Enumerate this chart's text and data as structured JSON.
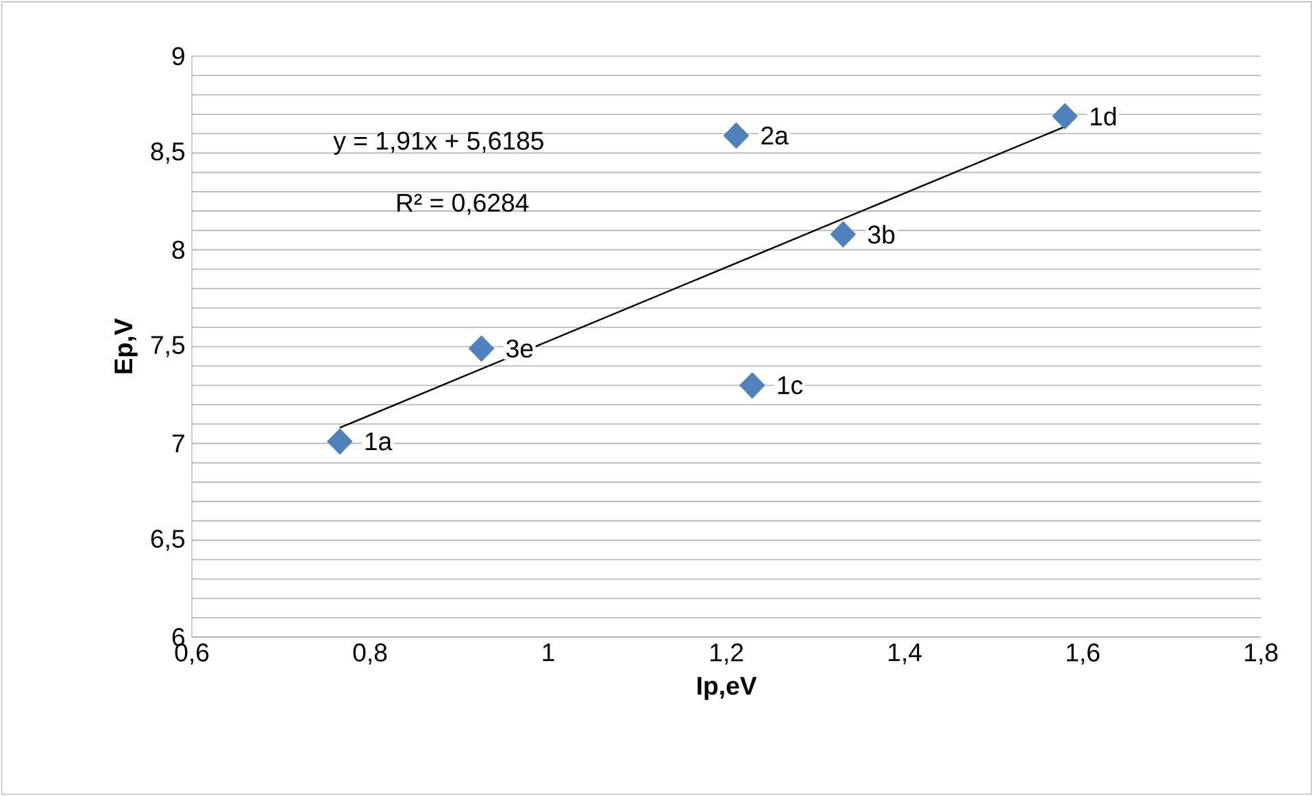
{
  "chart_data": {
    "type": "scatter",
    "xlabel": "Ip,eV",
    "ylabel": "Ep,V",
    "xlim": [
      0.6,
      1.8
    ],
    "ylim": [
      6,
      9
    ],
    "xticks": [
      {
        "value": 0.6,
        "label": "0,6"
      },
      {
        "value": 0.8,
        "label": "0,8"
      },
      1,
      {
        "value": 1.2,
        "label": "1,2"
      },
      {
        "value": 1.4,
        "label": "1,4"
      },
      {
        "value": 1.6,
        "label": "1,6"
      },
      {
        "value": 1.8,
        "label": "1,8"
      }
    ],
    "yticks": [
      6,
      {
        "value": 6.1,
        "label": null
      },
      {
        "value": 6.2,
        "label": null
      },
      {
        "value": 6.3,
        "label": null
      },
      {
        "value": 6.4,
        "label": null
      },
      {
        "value": 6.5,
        "label": "6,5"
      },
      {
        "value": 6.6,
        "label": null
      },
      {
        "value": 6.7,
        "label": null
      },
      {
        "value": 6.8,
        "label": null
      },
      {
        "value": 6.9,
        "label": null
      },
      7,
      {
        "value": 7.1,
        "label": null
      },
      {
        "value": 7.2,
        "label": null
      },
      {
        "value": 7.3,
        "label": null
      },
      {
        "value": 7.4,
        "label": null
      },
      {
        "value": 7.5,
        "label": "7,5"
      },
      {
        "value": 7.6,
        "label": null
      },
      {
        "value": 7.7,
        "label": null
      },
      {
        "value": 7.8,
        "label": null
      },
      {
        "value": 7.9,
        "label": null
      },
      8,
      {
        "value": 8.1,
        "label": null
      },
      {
        "value": 8.2,
        "label": null
      },
      {
        "value": 8.3,
        "label": null
      },
      {
        "value": 8.4,
        "label": null
      },
      {
        "value": 8.5,
        "label": "8,5"
      },
      {
        "value": 8.6,
        "label": null
      },
      {
        "value": 8.7,
        "label": null
      },
      {
        "value": 8.8,
        "label": null
      },
      {
        "value": 8.9,
        "label": null
      },
      9
    ],
    "grid": "y",
    "marker": "diamond",
    "series": [
      {
        "color": "#4f81bd",
        "x": [
          0.766,
          0.925,
          1.229,
          1.211,
          1.331,
          1.58
        ],
        "values": [
          7.01,
          7.49,
          7.3,
          8.59,
          8.08,
          8.69
        ]
      },
      {
        "type": "line",
        "color": "#000000",
        "marker": "none",
        "x": [
          0.766,
          1.58
        ],
        "values": [
          7.081,
          8.636
        ]
      }
    ],
    "annotations": [
      "y = 1,91x + 5,6185",
      "R² = 0,6284",
      {
        "text": "1a",
        "x": 0.766,
        "y": 7.01
      },
      {
        "text": "3e",
        "x": 0.925,
        "y": 7.49
      },
      {
        "text": "1c",
        "x": 1.229,
        "y": 7.3
      },
      {
        "text": "2a",
        "x": 1.211,
        "y": 8.59
      },
      {
        "text": "3b",
        "x": 1.331,
        "y": 8.08
      },
      {
        "text": "1d",
        "x": 1.58,
        "y": 8.69
      }
    ]
  }
}
